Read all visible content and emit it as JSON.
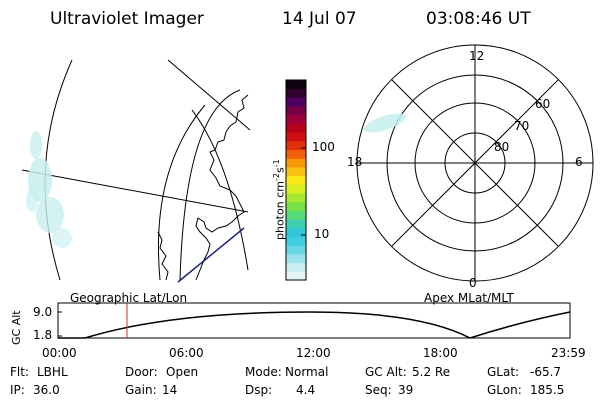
{
  "header": {
    "title": "Ultraviolet Imager",
    "date": "14 Jul 07",
    "time": "03:08:46 UT"
  },
  "geo_panel": {
    "label": "Geographic Lat/Lon"
  },
  "apex_panel": {
    "label": "Apex MLat/MLT",
    "mlt_labels": {
      "top": "12",
      "right": "6",
      "bottom": "0",
      "left": "18"
    },
    "lat_labels": [
      "60",
      "70",
      "80"
    ]
  },
  "colorbar": {
    "unit_text": "photon cm",
    "unit_sup1": "-2",
    "unit_mid": "s",
    "unit_sup2": "-1",
    "tick_labels": [
      "100",
      "10"
    ],
    "colors": [
      "#e6f6f6",
      "#c8ecf0",
      "#9ae3ec",
      "#6ad8e4",
      "#3ecfe0",
      "#30c8d8",
      "#40d0b0",
      "#58dc78",
      "#78e048",
      "#a8e830",
      "#d8f020",
      "#f8e818",
      "#f8c010",
      "#f89808",
      "#f06008",
      "#e03008",
      "#d01010",
      "#b80018",
      "#a00038",
      "#780048",
      "#500060",
      "#300030",
      "#100010"
    ]
  },
  "altitude_plot": {
    "ylabel": "GC Alt",
    "y_ticks": [
      "9.0",
      "1.8"
    ],
    "x_ticks": [
      "00:00",
      "06:00",
      "12:00",
      "18:00",
      "23:59"
    ],
    "current_time_marker": "03:08:46"
  },
  "info": {
    "flt": {
      "label": "Flt:",
      "value": "LBHL"
    },
    "door": {
      "label": "Door:",
      "value": "Open"
    },
    "mode": {
      "label": "Mode:",
      "value": "Normal"
    },
    "gc_alt": {
      "label": "GC Alt:",
      "value": "5.2 Re"
    },
    "glat": {
      "label": "GLat:",
      "value": "-65.7"
    },
    "ip": {
      "label": "IP:",
      "value": "36.0"
    },
    "gain": {
      "label": "Gain:",
      "value": "14"
    },
    "dsp": {
      "label": "Dsp:",
      "value": "4.4"
    },
    "seq": {
      "label": "Seq:",
      "value": "39"
    },
    "glon": {
      "label": "GLon:",
      "value": "185.5"
    }
  },
  "colors": {
    "foreground": "#000000",
    "aurora": "#c8eeee",
    "coast_blue": "#1a237e",
    "marker_red": "#cc3333"
  }
}
